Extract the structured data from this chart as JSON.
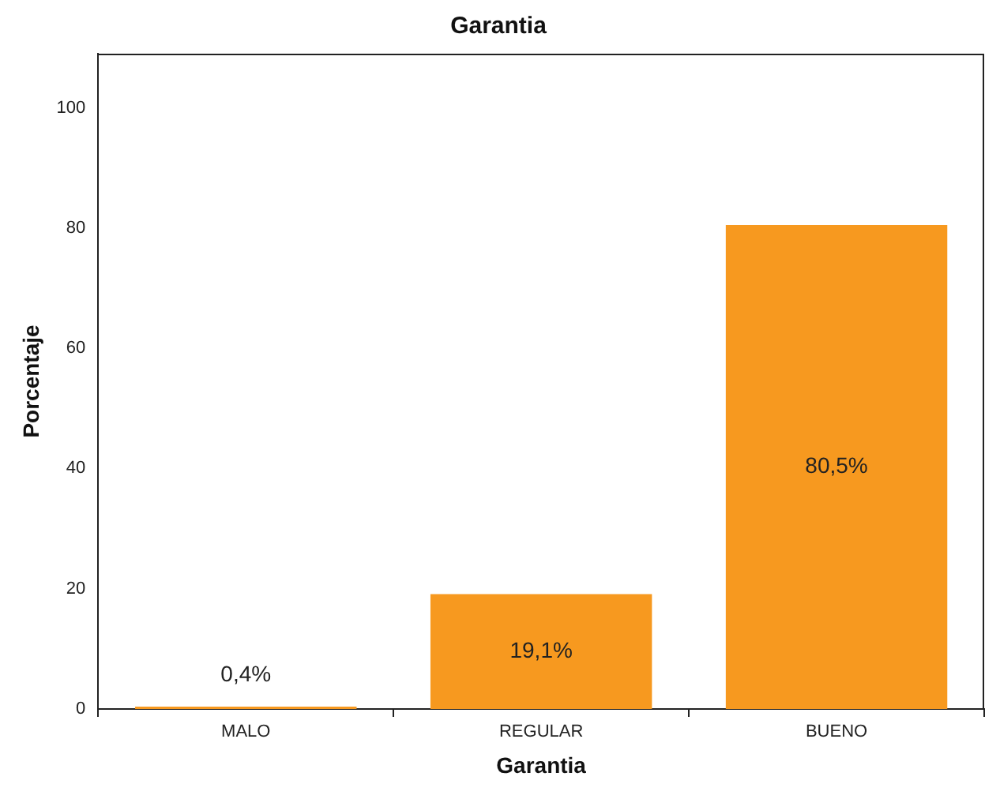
{
  "chart_data": {
    "type": "bar",
    "title": "Garantia",
    "xlabel": "Garantia",
    "ylabel": "Porcentaje",
    "categories": [
      "MALO",
      "REGULAR",
      "BUENO"
    ],
    "values": [
      0.4,
      19.1,
      80.5
    ],
    "value_labels": [
      "0,4%",
      "19,1%",
      "80,5%"
    ],
    "color": "#f7991f",
    "ylim": [
      0,
      109
    ],
    "yticks": [
      0,
      20,
      40,
      60,
      80,
      100
    ],
    "grid": false,
    "legend": false
  }
}
